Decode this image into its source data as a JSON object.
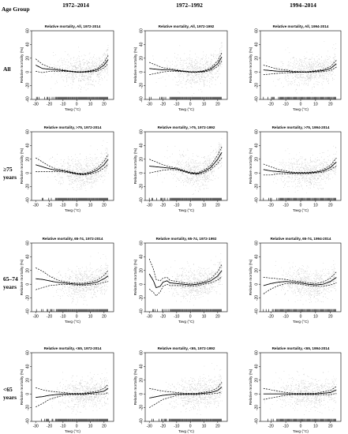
{
  "figure": {
    "corner_label": "Age Group",
    "column_headers": [
      "1972–2014",
      "1972–1992",
      "1994–2014"
    ],
    "row_labels": [
      [
        "All"
      ],
      [
        "≥75",
        "years"
      ],
      [
        "65–74",
        "years"
      ],
      [
        "<65",
        "years"
      ]
    ]
  },
  "chart_data": [
    {
      "type": "scatter",
      "title": "Relative mortality, All, 1972-2014",
      "xlabel": "Tavg (°C)",
      "ylabel": "Relative mortality (%)",
      "xlim": [
        -33,
        27
      ],
      "ylim": [
        -40,
        60
      ],
      "xticks": [
        -30,
        -20,
        -10,
        0,
        10,
        20
      ],
      "yticks": [
        -40,
        -20,
        0,
        20,
        40,
        60
      ],
      "ytick_labels": [
        "-40",
        "-20",
        "0",
        "20",
        "40",
        "60"
      ],
      "fit_curve": {
        "x": [
          -30,
          -25,
          -20,
          -15,
          -10,
          -5,
          0,
          5,
          10,
          15,
          20,
          23
        ],
        "y": [
          10,
          5,
          4,
          3,
          2,
          1,
          0,
          0,
          1,
          3,
          10,
          18
        ]
      },
      "ci_band_halfwidth": [
        9,
        6,
        3,
        2,
        1,
        0.5,
        0.5,
        0.5,
        1,
        2,
        4,
        6
      ]
    },
    {
      "type": "scatter",
      "title": "Relative mortality, All, 1972-1992",
      "xlabel": "Tavg (°C)",
      "ylabel": "Relative mortality (%)",
      "xlim": [
        -33,
        27
      ],
      "ylim": [
        -40,
        60
      ],
      "xticks": [
        -30,
        -20,
        -10,
        0,
        10,
        20
      ],
      "yticks": [
        -40,
        -20,
        0,
        20,
        40,
        60
      ],
      "ytick_labels": [
        "-40",
        "-20",
        "0",
        "20",
        "40",
        "60"
      ],
      "fit_curve": {
        "x": [
          -30,
          -25,
          -20,
          -15,
          -10,
          -5,
          0,
          5,
          10,
          15,
          20,
          23
        ],
        "y": [
          5,
          4,
          3,
          3,
          2,
          1,
          0,
          0,
          1,
          4,
          12,
          22
        ]
      },
      "ci_band_halfwidth": [
        9,
        6,
        3,
        2,
        1,
        0.5,
        0.5,
        0.5,
        1,
        2,
        4,
        6
      ]
    },
    {
      "type": "scatter",
      "title": "Relative mortality, All, 1994-2014",
      "xlabel": "Tavg (°C)",
      "ylabel": "Relative mortality (%)",
      "xlim": [
        -27,
        27
      ],
      "ylim": [
        -40,
        60
      ],
      "xticks": [
        -20,
        -10,
        0,
        10,
        20
      ],
      "yticks": [
        -40,
        -20,
        0,
        20,
        40,
        60
      ],
      "ytick_labels": [
        "-40",
        "-20",
        "0",
        "20",
        "40",
        "60"
      ],
      "fit_curve": {
        "x": [
          -25,
          -20,
          -15,
          -10,
          -5,
          0,
          5,
          10,
          15,
          20,
          24
        ],
        "y": [
          3,
          2,
          1,
          1,
          0,
          0,
          0,
          1,
          2,
          5,
          12
        ]
      },
      "ci_band_halfwidth": [
        7,
        5,
        3,
        2,
        1,
        0.5,
        0.5,
        1,
        1.5,
        3,
        5
      ]
    },
    {
      "type": "scatter",
      "title": "Relative mortality, >75, 1972-2014",
      "xlabel": "Tavg (°C)",
      "ylabel": "Relative mortality (%)",
      "xlim": [
        -33,
        27
      ],
      "ylim": [
        -40,
        60
      ],
      "xticks": [
        -30,
        -20,
        -10,
        0,
        10,
        20
      ],
      "yticks": [
        -40,
        -20,
        0,
        20,
        40,
        60
      ],
      "ytick_labels": [
        "-40",
        "-20",
        "0",
        "20",
        "40",
        "60"
      ],
      "fit_curve": {
        "x": [
          -30,
          -25,
          -20,
          -15,
          -10,
          -5,
          0,
          5,
          10,
          15,
          20,
          23
        ],
        "y": [
          12,
          9,
          6,
          4,
          3,
          1,
          -1,
          -2,
          0,
          4,
          12,
          20
        ]
      },
      "ci_band_halfwidth": [
        10,
        7,
        4,
        2,
        1.5,
        1,
        1,
        1,
        1.5,
        3,
        5,
        7
      ]
    },
    {
      "type": "scatter",
      "title": "Relative mortality, >75, 1972-1992",
      "xlabel": "Tavg (°C)",
      "ylabel": "Relative mortality (%)",
      "xlim": [
        -33,
        27
      ],
      "ylim": [
        -40,
        60
      ],
      "xticks": [
        -30,
        -20,
        -10,
        0,
        10,
        20
      ],
      "yticks": [
        -40,
        -20,
        0,
        20,
        40,
        60
      ],
      "ytick_labels": [
        "-40",
        "-20",
        "0",
        "20",
        "40",
        "60"
      ],
      "fit_curve": {
        "x": [
          -30,
          -25,
          -20,
          -15,
          -10,
          -5,
          0,
          5,
          10,
          15,
          20,
          23
        ],
        "y": [
          10,
          9,
          8,
          7,
          6,
          3,
          0,
          -1,
          2,
          8,
          20,
          30
        ]
      },
      "ci_band_halfwidth": [
        10,
        7,
        4,
        2,
        1.5,
        1,
        1,
        1,
        2,
        3,
        6,
        8
      ]
    },
    {
      "type": "scatter",
      "title": "Relative mortality, >75, 1994-2014",
      "xlabel": "Tavg (°C)",
      "ylabel": "Relative mortality (%)",
      "xlim": [
        -27,
        27
      ],
      "ylim": [
        -40,
        60
      ],
      "xticks": [
        -20,
        -10,
        0,
        10,
        20
      ],
      "yticks": [
        -40,
        -20,
        0,
        20,
        40,
        60
      ],
      "ytick_labels": [
        "-40",
        "-20",
        "0",
        "20",
        "40",
        "60"
      ],
      "fit_curve": {
        "x": [
          -25,
          -20,
          -15,
          -10,
          -5,
          0,
          5,
          10,
          15,
          20,
          24
        ],
        "y": [
          5,
          3,
          2,
          1,
          0,
          0,
          0,
          1,
          3,
          8,
          16
        ]
      },
      "ci_band_halfwidth": [
        8,
        6,
        3,
        2,
        1,
        1,
        1,
        1,
        2,
        3,
        6
      ]
    },
    {
      "type": "scatter",
      "title": "Relative mortality, 65-74, 1972-2014",
      "xlabel": "Tavg (°C)",
      "ylabel": "Relative mortality (%)",
      "xlim": [
        -33,
        27
      ],
      "ylim": [
        -40,
        60
      ],
      "xticks": [
        -30,
        -20,
        -10,
        0,
        10,
        20
      ],
      "yticks": [
        -40,
        -20,
        0,
        20,
        40,
        60
      ],
      "ytick_labels": [
        "-40",
        "-20",
        "0",
        "20",
        "40",
        "60"
      ],
      "fit_curve": {
        "x": [
          -30,
          -25,
          -20,
          -15,
          -10,
          -5,
          0,
          5,
          10,
          15,
          20,
          23
        ],
        "y": [
          8,
          7,
          5,
          3,
          2,
          1,
          0,
          0,
          1,
          3,
          8,
          12
        ]
      },
      "ci_band_halfwidth": [
        16,
        12,
        7,
        4,
        2,
        1.5,
        1.5,
        1.5,
        2,
        3,
        5,
        8
      ]
    },
    {
      "type": "scatter",
      "title": "Relative mortality, 65-74, 1972-1992",
      "xlabel": "Tavg (°C)",
      "ylabel": "Relative mortality (%)",
      "xlim": [
        -33,
        27
      ],
      "ylim": [
        -40,
        60
      ],
      "xticks": [
        -30,
        -20,
        -10,
        0,
        10,
        20
      ],
      "yticks": [
        -40,
        -20,
        0,
        20,
        40,
        60
      ],
      "ytick_labels": [
        "-40",
        "-20",
        "0",
        "20",
        "40",
        "60"
      ],
      "fit_curve": {
        "x": [
          -30,
          -27,
          -25,
          -22,
          -20,
          -17,
          -15,
          -10,
          -5,
          0,
          5,
          10,
          15,
          20,
          23
        ],
        "y": [
          15,
          5,
          -5,
          -3,
          3,
          5,
          2,
          1,
          0,
          -1,
          0,
          2,
          5,
          12,
          20
        ]
      },
      "ci_band_halfwidth": [
        22,
        17,
        12,
        8,
        6,
        5,
        4,
        3,
        2,
        2,
        2,
        2,
        3,
        6,
        9
      ]
    },
    {
      "type": "scatter",
      "title": "Relative mortality, 65-74, 1994-2014",
      "xlabel": "Tavg (°C)",
      "ylabel": "Relative mortality (%)",
      "xlim": [
        -27,
        27
      ],
      "ylim": [
        -40,
        60
      ],
      "xticks": [
        -20,
        -10,
        0,
        10,
        20
      ],
      "yticks": [
        -40,
        -20,
        0,
        20,
        40,
        60
      ],
      "ytick_labels": [
        "-40",
        "-20",
        "0",
        "20",
        "40",
        "60"
      ],
      "fit_curve": {
        "x": [
          -25,
          -20,
          -15,
          -10,
          -5,
          0,
          5,
          10,
          15,
          20,
          24
        ],
        "y": [
          -2,
          1,
          3,
          4,
          3,
          2,
          0,
          -1,
          0,
          4,
          10
        ]
      },
      "ci_band_halfwidth": [
        12,
        8,
        5,
        3,
        2,
        2,
        2,
        2,
        3,
        5,
        8
      ]
    },
    {
      "type": "scatter",
      "title": "Relative mortality, <65, 1972-2014",
      "xlabel": "Tavg (°C)",
      "ylabel": "Relative mortality (%)",
      "xlim": [
        -33,
        27
      ],
      "ylim": [
        -40,
        60
      ],
      "xticks": [
        -30,
        -20,
        -10,
        0,
        10,
        20
      ],
      "yticks": [
        -40,
        -20,
        0,
        20,
        40,
        60
      ],
      "ytick_labels": [
        "-40",
        "-20",
        "0",
        "20",
        "40",
        "60"
      ],
      "fit_curve": {
        "x": [
          -30,
          -25,
          -20,
          -15,
          -10,
          -5,
          0,
          5,
          10,
          15,
          20,
          23
        ],
        "y": [
          -5,
          -4,
          -2,
          -1,
          0,
          0,
          0,
          0,
          1,
          2,
          4,
          8
        ]
      },
      "ci_band_halfwidth": [
        14,
        10,
        6,
        4,
        2,
        1,
        1,
        1,
        1.5,
        2,
        4,
        6
      ]
    },
    {
      "type": "scatter",
      "title": "Relative mortality, <65, 1972-1992",
      "xlabel": "Tavg (°C)",
      "ylabel": "Relative mortality (%)",
      "xlim": [
        -33,
        27
      ],
      "ylim": [
        -40,
        60
      ],
      "xticks": [
        -30,
        -20,
        -10,
        0,
        10,
        20
      ],
      "yticks": [
        -40,
        -20,
        0,
        20,
        40,
        60
      ],
      "ytick_labels": [
        "-40",
        "-20",
        "0",
        "20",
        "40",
        "60"
      ],
      "fit_curve": {
        "x": [
          -30,
          -25,
          -20,
          -15,
          -10,
          -5,
          0,
          5,
          10,
          15,
          20,
          23
        ],
        "y": [
          -6,
          -4,
          -2,
          -1,
          0,
          0,
          0,
          0,
          1,
          2,
          5,
          10
        ]
      },
      "ci_band_halfwidth": [
        14,
        10,
        6,
        4,
        2,
        1,
        1,
        1,
        1.5,
        2,
        4,
        7
      ]
    },
    {
      "type": "scatter",
      "title": "Relative mortality, <65, 1994-2014",
      "xlabel": "Tavg (°C)",
      "ylabel": "Relative mortality (%)",
      "xlim": [
        -27,
        27
      ],
      "ylim": [
        -40,
        60
      ],
      "xticks": [
        -20,
        -10,
        0,
        10,
        20
      ],
      "yticks": [
        -40,
        -20,
        0,
        20,
        40,
        60
      ],
      "ytick_labels": [
        "-40",
        "-20",
        "0",
        "20",
        "40",
        "60"
      ],
      "fit_curve": {
        "x": [
          -25,
          -20,
          -15,
          -10,
          -5,
          0,
          5,
          10,
          15,
          20,
          24
        ],
        "y": [
          0,
          0,
          0,
          0,
          0,
          0,
          0,
          0,
          1,
          2,
          6
        ]
      },
      "ci_band_halfwidth": [
        8,
        6,
        4,
        2,
        1,
        1,
        1,
        1,
        2,
        3,
        5
      ]
    }
  ]
}
